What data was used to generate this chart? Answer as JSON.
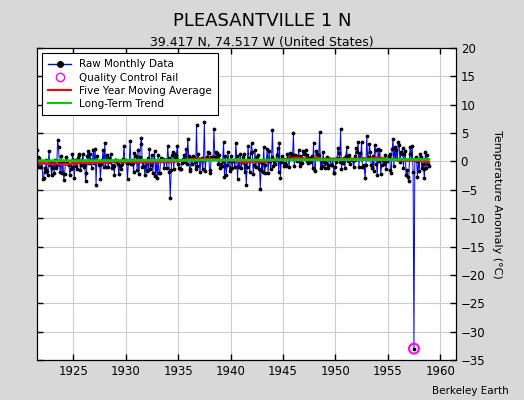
{
  "title": "PLEASANTVILLE 1 N",
  "subtitle": "39.417 N, 74.517 W (United States)",
  "ylabel": "Temperature Anomaly (°C)",
  "xlabel_credit": "Berkeley Earth",
  "xlim": [
    1921.5,
    1961.5
  ],
  "ylim": [
    -35,
    20
  ],
  "yticks": [
    -35,
    -30,
    -25,
    -20,
    -15,
    -10,
    -5,
    0,
    5,
    10,
    15,
    20
  ],
  "xticks": [
    1925,
    1930,
    1935,
    1940,
    1945,
    1950,
    1955,
    1960
  ],
  "year_start": 1921,
  "n_years": 38,
  "bg_color": "#d8d8d8",
  "plot_bg_color": "#ffffff",
  "raw_line_color": "#0000ff",
  "raw_marker_color": "#000000",
  "moving_avg_color": "#ff0000",
  "trend_color": "#00cc00",
  "qc_fail_color": "#ff00ff",
  "grid_color": "#cccccc",
  "seed": 42,
  "noise_std": 1.5,
  "qc_year": 1957.5,
  "qc_val": -33.0,
  "spike1_year": 1934.3,
  "spike1_val": -6.5,
  "spike2_year": 1936.8,
  "spike2_val": 6.5,
  "spike3_year": 1939.5,
  "spike3_val": -3.8,
  "spike4_year": 1957.8,
  "spike4_val": -2.5
}
